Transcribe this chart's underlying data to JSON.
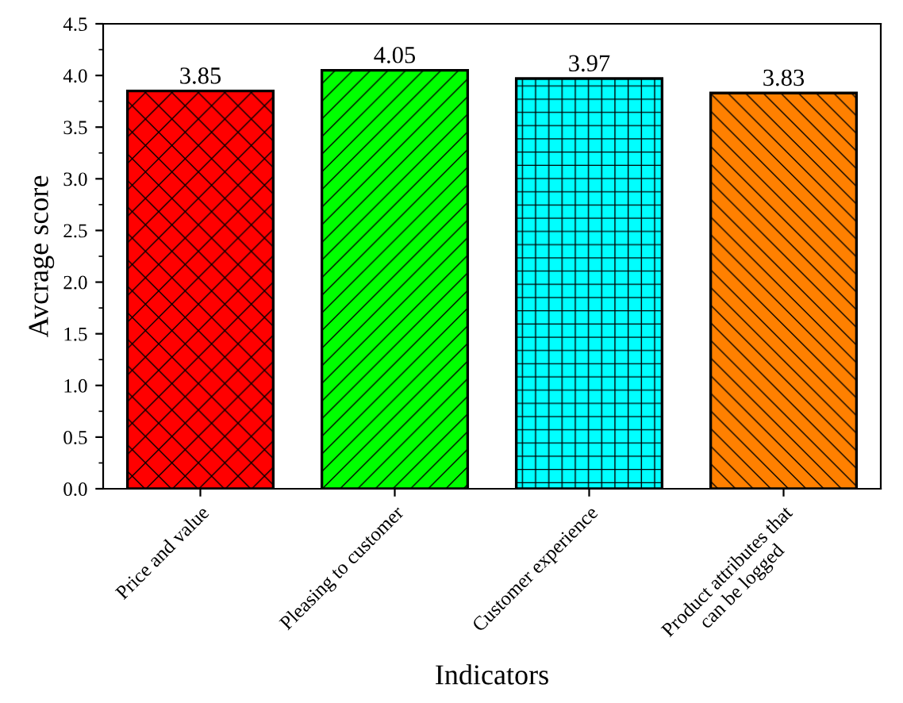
{
  "chart_data": {
    "type": "bar",
    "xlabel": "Indicators",
    "ylabel": "Avcrage score",
    "categories": [
      "Price and value",
      "Pleasing to customer",
      "Customer experience",
      "Product attributes that\ncan be logged"
    ],
    "values": [
      3.85,
      4.05,
      3.97,
      3.83
    ],
    "colors": [
      "#ff0000",
      "#00ff00",
      "#00ffff",
      "#ff8000"
    ],
    "ylim": [
      0,
      4.5
    ],
    "yticks": [
      {
        "value": 0,
        "label": "0.0"
      },
      {
        "value": 0.5,
        "label": "0.5"
      },
      {
        "value": 1,
        "label": "1.0"
      },
      {
        "value": 1.5,
        "label": "1.5"
      },
      {
        "value": 2,
        "label": "2.0"
      },
      {
        "value": 2.5,
        "label": "2.5"
      },
      {
        "value": 3,
        "label": "3.0"
      },
      {
        "value": 3.5,
        "label": "3.5"
      },
      {
        "value": 4,
        "label": "4.0"
      },
      {
        "value": 4.5,
        "label": "4.5"
      }
    ],
    "data_labels": true,
    "grid": false,
    "legend": false
  }
}
